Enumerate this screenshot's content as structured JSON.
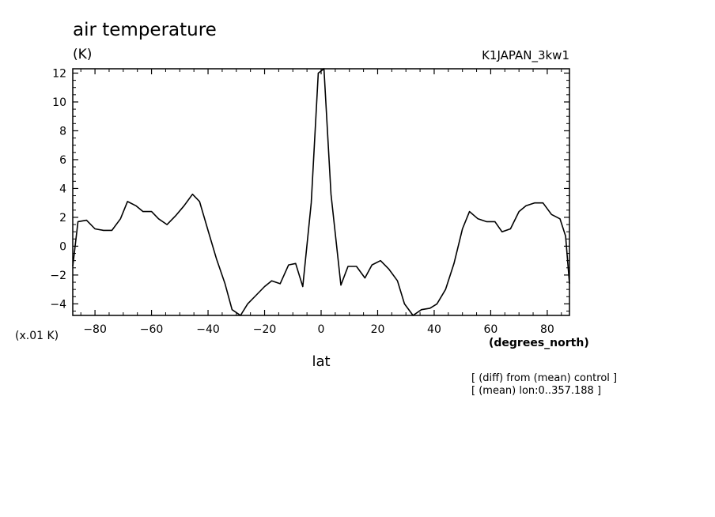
{
  "chart_data": {
    "type": "line",
    "title": "air temperature",
    "units_label": "(K)",
    "run_label": "K1JAPAN_3kw1",
    "scale_label": "(x.01 K)",
    "xlabel": "lat",
    "xunits_label": "(degrees_north)",
    "notes": [
      "[ (diff) from (mean) control ]",
      "[ (mean) lon:0..357.188 ]"
    ],
    "xlim": [
      -87.86,
      87.86
    ],
    "ylim": [
      -4.8,
      12.3
    ],
    "xticks": [
      -80,
      -60,
      -40,
      -20,
      0,
      20,
      40,
      60,
      80
    ],
    "yticks": [
      -4,
      -2,
      0,
      2,
      4,
      6,
      8,
      10,
      12
    ],
    "series": [
      {
        "x": [
          -87.86,
          -86.0,
          -83.0,
          -80.0,
          -77.0,
          -74.0,
          -71.0,
          -68.5,
          -65.5,
          -63.0,
          -60.0,
          -57.5,
          -54.5,
          -51.5,
          -48.5,
          -45.5,
          -43.0,
          -40.0,
          -37.0,
          -34.0,
          -31.5,
          -28.5,
          -26.0,
          -23.0,
          -20.0,
          -17.5,
          -14.5,
          -11.5,
          -9.0,
          -6.5,
          -3.5,
          -1.0,
          1.0,
          3.5,
          7.0,
          9.5,
          12.5,
          15.5,
          18.0,
          21.0,
          24.0,
          27.0,
          29.5,
          32.5,
          35.5,
          38.5,
          41.0,
          44.0,
          47.0,
          50.0,
          52.5,
          55.5,
          58.5,
          61.5,
          64.0,
          67.0,
          70.0,
          72.5,
          75.5,
          78.5,
          81.5,
          84.5,
          86.5,
          87.86
        ],
        "y": [
          -1.4,
          1.7,
          1.8,
          1.2,
          1.1,
          1.1,
          1.9,
          3.1,
          2.8,
          2.4,
          2.4,
          1.9,
          1.5,
          2.1,
          2.8,
          3.6,
          3.1,
          1.1,
          -0.9,
          -2.6,
          -4.4,
          -4.8,
          -4.0,
          -3.4,
          -2.8,
          -2.4,
          -2.6,
          -1.3,
          -1.2,
          -2.8,
          3.0,
          12.0,
          12.3,
          3.6,
          -2.7,
          -1.4,
          -1.4,
          -2.2,
          -1.3,
          -1.0,
          -1.6,
          -2.4,
          -4.0,
          -4.8,
          -4.4,
          -4.3,
          -4.0,
          -3.0,
          -1.2,
          1.2,
          2.4,
          1.9,
          1.7,
          1.7,
          1.0,
          1.2,
          2.4,
          2.8,
          3.0,
          3.0,
          2.2,
          1.9,
          0.7,
          -2.6
        ]
      }
    ],
    "grid": false,
    "legend": "none"
  }
}
